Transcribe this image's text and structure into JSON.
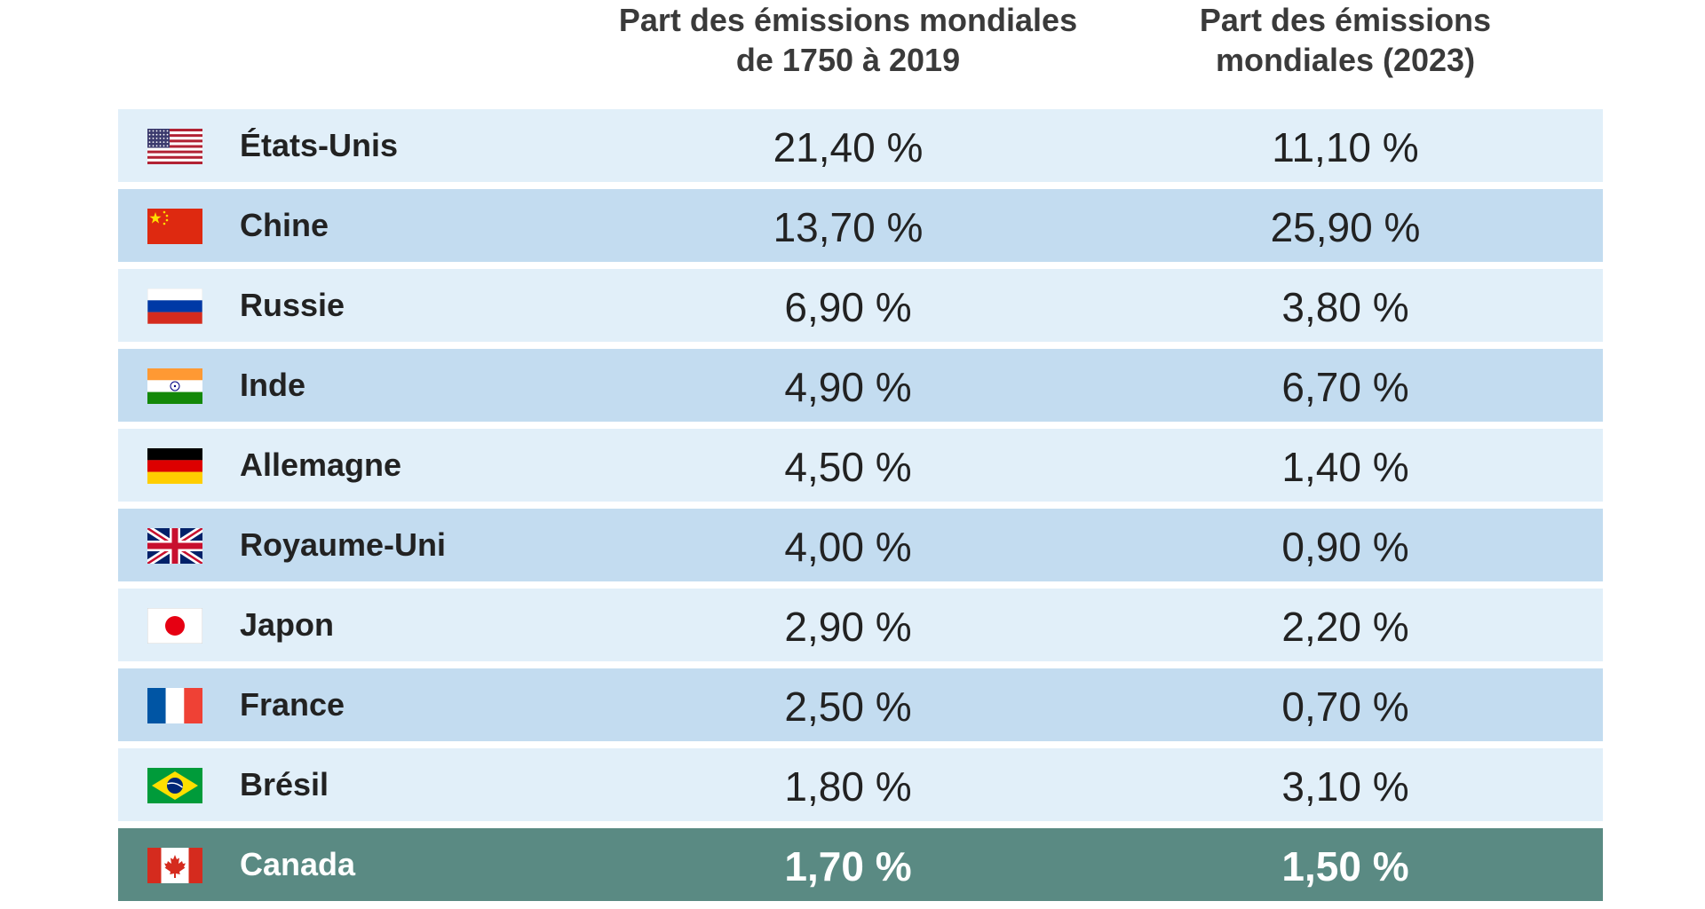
{
  "chart_data": {
    "type": "table",
    "columns": [
      [
        "Part des émissions mondiales",
        "de 1750 à 2019"
      ],
      [
        "Part des émissions",
        "mondiales (2023)"
      ]
    ],
    "rows": [
      {
        "flag": "us-flag-icon",
        "country": "États-Unis",
        "v1": "21,40 %",
        "v2": "11,10 %",
        "historical": 21.4,
        "y2023": 11.1
      },
      {
        "flag": "cn-flag-icon",
        "country": "Chine",
        "v1": "13,70 %",
        "v2": "25,90 %",
        "historical": 13.7,
        "y2023": 25.9
      },
      {
        "flag": "ru-flag-icon",
        "country": "Russie",
        "v1": "6,90 %",
        "v2": "3,80 %",
        "historical": 6.9,
        "y2023": 3.8
      },
      {
        "flag": "in-flag-icon",
        "country": "Inde",
        "v1": "4,90 %",
        "v2": "6,70 %",
        "historical": 4.9,
        "y2023": 6.7
      },
      {
        "flag": "de-flag-icon",
        "country": "Allemagne",
        "v1": "4,50 %",
        "v2": "1,40 %",
        "historical": 4.5,
        "y2023": 1.4
      },
      {
        "flag": "gb-flag-icon",
        "country": "Royaume-Uni",
        "v1": "4,00 %",
        "v2": "0,90 %",
        "historical": 4.0,
        "y2023": 0.9
      },
      {
        "flag": "jp-flag-icon",
        "country": "Japon",
        "v1": "2,90 %",
        "v2": "2,20 %",
        "historical": 2.9,
        "y2023": 2.2
      },
      {
        "flag": "fr-flag-icon",
        "country": "France",
        "v1": "2,50 %",
        "v2": "0,70 %",
        "historical": 2.5,
        "y2023": 0.7
      },
      {
        "flag": "br-flag-icon",
        "country": "Brésil",
        "v1": "1,80 %",
        "v2": "3,10 %",
        "historical": 1.8,
        "y2023": 3.1
      },
      {
        "flag": "ca-flag-icon",
        "country": "Canada",
        "v1": "1,70 %",
        "v2": "1,50 %",
        "historical": 1.7,
        "y2023": 1.5,
        "highlighted": true
      }
    ],
    "colors": {
      "row_light": "#e1eff9",
      "row_dark": "#c3dcf0",
      "row_highlight": "#5a8a83",
      "header_text": "#3a3a3a"
    }
  }
}
